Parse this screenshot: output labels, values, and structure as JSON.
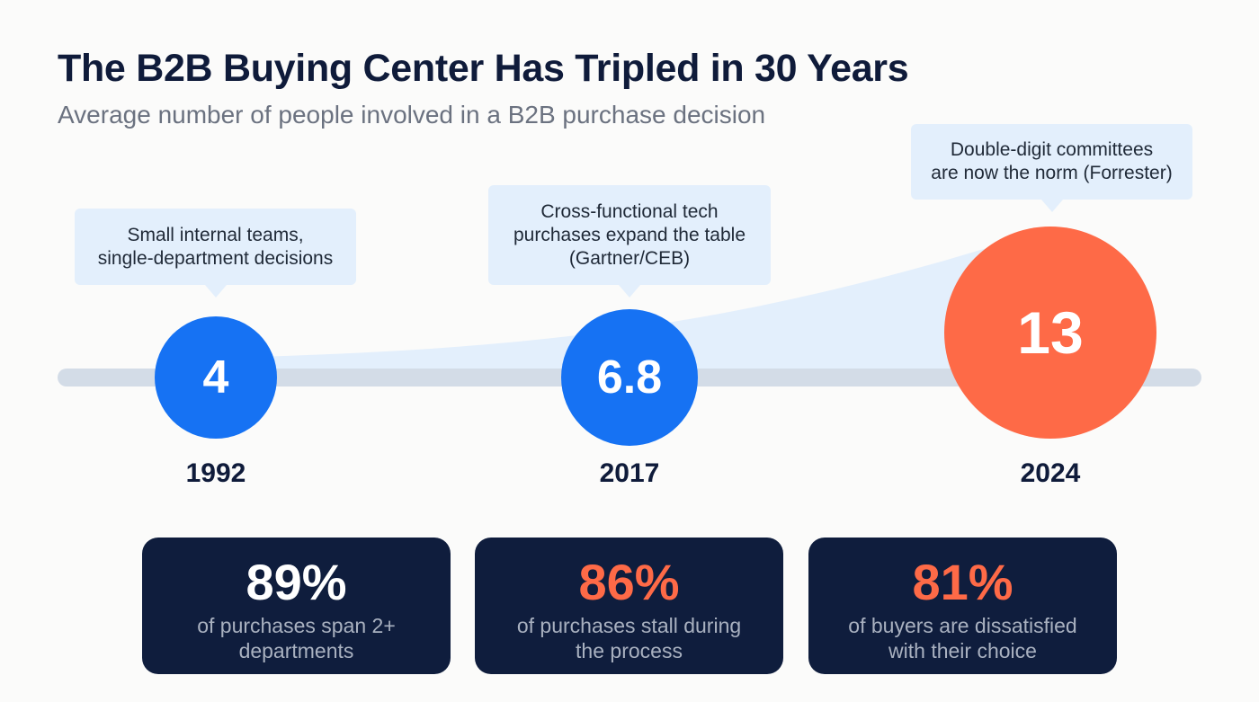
{
  "title": "The B2B Buying Center Has Tripled in 30 Years",
  "subtitle": "Average number of people involved in a B2B purchase decision",
  "colors": {
    "blue": "#1672f3",
    "orange": "#fe6a47",
    "navy": "#0f1d3d",
    "callout": "#e3effc",
    "track": "#d3dce7"
  },
  "milestones": [
    {
      "year": "1992",
      "value": "4",
      "note": "Small internal teams,\nsingle-department decisions"
    },
    {
      "year": "2017",
      "value": "6.8",
      "note": "Cross-functional tech\npurchases expand the table\n(Gartner/CEB)"
    },
    {
      "year": "2024",
      "value": "13",
      "note": "Double-digit committees\nare now the norm (Forrester)"
    }
  ],
  "stats": [
    {
      "value": "89%",
      "desc": "of purchases span 2+\ndepartments",
      "color": "#ffffff"
    },
    {
      "value": "86%",
      "desc": "of purchases stall during\nthe process",
      "color": "#fe6a47"
    },
    {
      "value": "81%",
      "desc": "of buyers are dissatisfied\nwith their choice",
      "color": "#fe6a47"
    }
  ]
}
